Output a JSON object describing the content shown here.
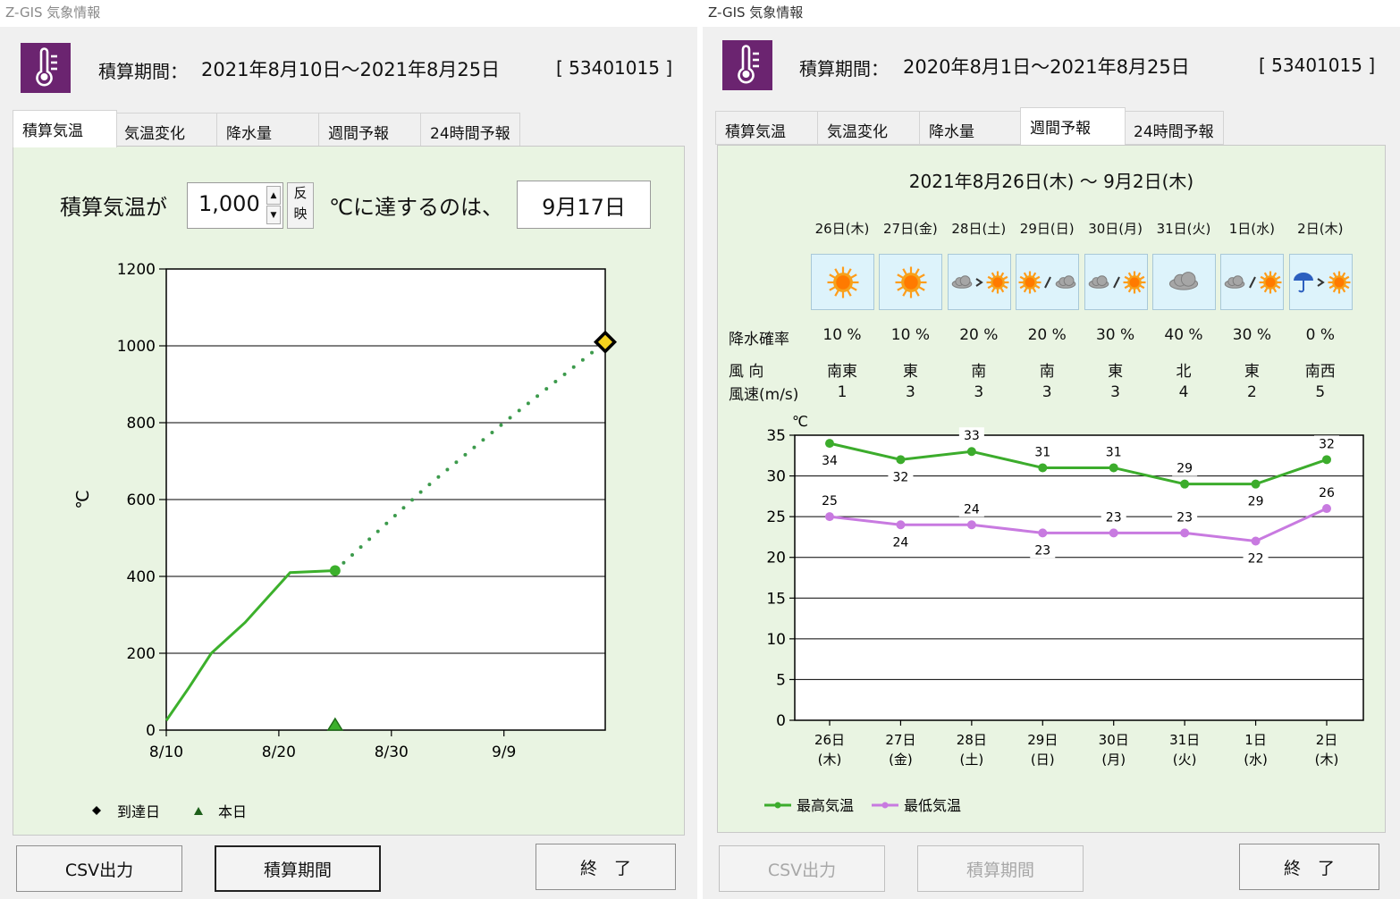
{
  "left": {
    "window_title": "Z-GIS 気象情報",
    "header": {
      "period_label": "積算期間：",
      "period_value": "2021年8月10日～2021年8月25日",
      "code": "[ 53401015 ]"
    },
    "tabs": [
      {
        "label": "積算気温",
        "active": true
      },
      {
        "label": "気温変化",
        "active": false
      },
      {
        "label": "降水量",
        "active": false
      },
      {
        "label": "週間予報",
        "active": false
      },
      {
        "label": "24時間予報",
        "active": false
      }
    ],
    "target": {
      "prefix": "積算気温が",
      "value": "1,000",
      "apply_top": "反",
      "apply_bottom": "映",
      "suffix": "℃に達するのは、",
      "result": "9月17日"
    },
    "chart_data": {
      "type": "line",
      "ylabel": "℃",
      "ylim": [
        0,
        1200
      ],
      "yticks": [
        "0",
        "200",
        "400",
        "600",
        "800",
        "1000",
        "1200"
      ],
      "xticks": [
        "8/10",
        "8/20",
        "8/30",
        "9/9"
      ],
      "x_range_days": [
        0,
        39
      ],
      "xtick_days": [
        0,
        10,
        20,
        30
      ],
      "actual": {
        "x_days": [
          0,
          2,
          4,
          7,
          11,
          15
        ],
        "values": [
          25,
          110,
          200,
          280,
          410,
          415
        ]
      },
      "projected": {
        "x_days": [
          15,
          23,
          30,
          39
        ],
        "values": [
          415,
          630,
          800,
          1010
        ]
      },
      "reached": {
        "x_day": 39,
        "value": 1010
      },
      "today": {
        "x_day": 15
      },
      "legend": [
        {
          "label": "到達日",
          "marker": "diamond"
        },
        {
          "label": "本日",
          "marker": "triangle"
        }
      ]
    },
    "buttons": {
      "csv": "CSV出力",
      "period": "積算期間",
      "exit": "終　了"
    }
  },
  "right": {
    "window_title": "Z-GIS 気象情報",
    "header": {
      "period_label": "積算期間：",
      "period_value": "2020年8月1日～2021年8月25日",
      "code": "[ 53401015 ]"
    },
    "tabs": [
      {
        "label": "積算気温",
        "active": false
      },
      {
        "label": "気温変化",
        "active": false
      },
      {
        "label": "降水量",
        "active": false
      },
      {
        "label": "週間予報",
        "active": true
      },
      {
        "label": "24時間予報",
        "active": false
      }
    ],
    "forecast": {
      "range": "2021年8月26日(木) ～ 9月2日(木)",
      "days": [
        "26日(木)",
        "27日(金)",
        "28日(土)",
        "29日(日)",
        "30日(月)",
        "31日(火)",
        "1日(水)",
        "2日(木)"
      ],
      "icons": [
        "sun-icon",
        "sun-icon",
        "cloud-then-sun-icon",
        "sun-or-cloud-icon",
        "cloud-or-sun-icon",
        "cloud-icon",
        "cloud-or-sun-icon",
        "rain-then-sun-icon"
      ],
      "precip_label": "降水確率",
      "precip": [
        "10 %",
        "10 %",
        "20 %",
        "20 %",
        "30 %",
        "40 %",
        "30 %",
        "0 %"
      ],
      "wind_dir_label": "風 向",
      "wind_dir": [
        "南東",
        "東",
        "南",
        "南",
        "東",
        "北",
        "東",
        "南西"
      ],
      "wind_speed_label": "風速(m/s)",
      "wind_speed": [
        "1",
        "3",
        "3",
        "3",
        "3",
        "4",
        "2",
        "5"
      ]
    },
    "chart_data": {
      "type": "line",
      "ylabel": "℃",
      "ylim": [
        0,
        35
      ],
      "yticks": [
        "0",
        "5",
        "10",
        "15",
        "20",
        "25",
        "30",
        "35"
      ],
      "categories_top": [
        "26日",
        "27日",
        "28日",
        "29日",
        "30日",
        "31日",
        "1日",
        "2日"
      ],
      "categories_bottom": [
        "(木)",
        "(金)",
        "(土)",
        "(日)",
        "(月)",
        "(火)",
        "(水)",
        "(木)"
      ],
      "series": [
        {
          "name": "最高気温",
          "values": [
            34,
            32,
            33,
            31,
            31,
            29,
            29,
            32
          ],
          "color": "#3cac2c"
        },
        {
          "name": "最低気温",
          "values": [
            25,
            24,
            24,
            23,
            23,
            23,
            22,
            26
          ],
          "color": "#c87ae0"
        }
      ]
    },
    "buttons": {
      "csv": "CSV出力",
      "period": "積算期間",
      "exit": "終　了"
    }
  }
}
